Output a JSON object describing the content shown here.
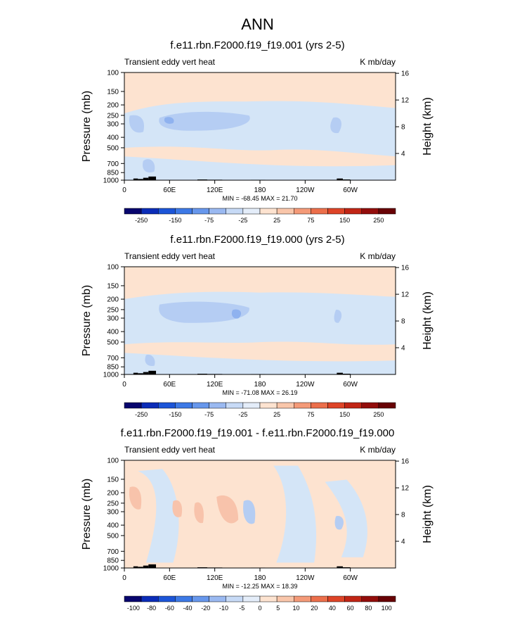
{
  "figure": {
    "title": "ANN",
    "common": {
      "left_label": "Transient eddy vert heat",
      "right_label": "K mb/day",
      "ylabel": "Pressure (mb)",
      "ylabel_right": "Height (km)",
      "pressure_ticks": [
        "100",
        "150",
        "200",
        "250",
        "300",
        "400",
        "500",
        "700",
        "850",
        "1000"
      ],
      "height_ticks": [
        "16",
        "12",
        "8",
        "4"
      ],
      "lon_ticks": [
        "0",
        "60E",
        "120E",
        "180",
        "120W",
        "60W"
      ]
    },
    "colors": {
      "bg_positive": "#fde3d0",
      "bg_negative": "#d4e5f7",
      "cool_level_1": "#b5cdf3",
      "cool_level_2": "#8fb2ef",
      "warm_level_1": "#f8c3ab",
      "terrain": "#000000"
    },
    "panels": [
      {
        "title": "f.e11.rbn.F2000.f19_f19.001 (yrs 2-5)",
        "minmax": "MIN = -68.45  MAX = 21.70",
        "colorbar_colors": [
          "#08066e",
          "#0b2cb8",
          "#1c55d8",
          "#3d79e6",
          "#6797ec",
          "#9ab9f1",
          "#c7daf6",
          "#e4edf9",
          "#fde3d0",
          "#f9c6aa",
          "#f49a78",
          "#ec6f4b",
          "#de4427",
          "#c12515",
          "#930d0b",
          "#680205"
        ],
        "colorbar_labels": [
          "-250",
          "-150",
          "-75",
          "-25",
          "25",
          "75",
          "150",
          "250"
        ]
      },
      {
        "title": "f.e11.rbn.F2000.f19_f19.000 (yrs 2-5)",
        "minmax": "MIN = -71.08  MAX = 26.19",
        "colorbar_colors": [
          "#08066e",
          "#0b2cb8",
          "#1c55d8",
          "#3d79e6",
          "#6797ec",
          "#9ab9f1",
          "#c7daf6",
          "#e4edf9",
          "#fde3d0",
          "#f9c6aa",
          "#f49a78",
          "#ec6f4b",
          "#de4427",
          "#c12515",
          "#930d0b",
          "#680205"
        ],
        "colorbar_labels": [
          "-250",
          "-150",
          "-75",
          "-25",
          "25",
          "75",
          "150",
          "250"
        ]
      },
      {
        "title": "f.e11.rbn.F2000.f19_f19.001 - f.e11.rbn.F2000.f19_f19.000",
        "minmax": "MIN = -12.25  MAX = 18.39",
        "colorbar_colors": [
          "#08066e",
          "#0b2cb8",
          "#1c55d8",
          "#3d79e6",
          "#6797ec",
          "#9ab9f1",
          "#c7daf6",
          "#e4edf9",
          "#fde3d0",
          "#f9c6aa",
          "#f49a78",
          "#ec6f4b",
          "#de4427",
          "#c12515",
          "#930d0b",
          "#680205"
        ],
        "colorbar_labels": [
          "-100",
          "-80",
          "-60",
          "-40",
          "-20",
          "-10",
          "-5",
          "0",
          "5",
          "10",
          "20",
          "40",
          "60",
          "80",
          "100"
        ]
      }
    ]
  },
  "chart_data": [
    {
      "type": "heatmap",
      "title": "f.e11.rbn.F2000.f19_f19.001 (yrs 2-5)",
      "xlabel": "",
      "ylabel": "Pressure (mb)",
      "xlim": [
        0,
        360
      ],
      "ylim": [
        1000,
        100
      ],
      "y_scale": "log",
      "min": -68.45,
      "max": 21.7,
      "levels": [
        -250,
        -200,
        -150,
        -100,
        -75,
        -50,
        -25,
        -10,
        10,
        25,
        50,
        75,
        100,
        150,
        200,
        250
      ],
      "grid": false
    },
    {
      "type": "heatmap",
      "title": "f.e11.rbn.F2000.f19_f19.000 (yrs 2-5)",
      "xlabel": "",
      "ylabel": "Pressure (mb)",
      "xlim": [
        0,
        360
      ],
      "ylim": [
        1000,
        100
      ],
      "y_scale": "log",
      "min": -71.08,
      "max": 26.19,
      "levels": [
        -250,
        -200,
        -150,
        -100,
        -75,
        -50,
        -25,
        -10,
        10,
        25,
        50,
        75,
        100,
        150,
        200,
        250
      ],
      "grid": false
    },
    {
      "type": "heatmap",
      "title": "f.e11.rbn.F2000.f19_f19.001 - f.e11.rbn.F2000.f19_f19.000",
      "xlabel": "",
      "ylabel": "Pressure (mb)",
      "xlim": [
        0,
        360
      ],
      "ylim": [
        1000,
        100
      ],
      "y_scale": "log",
      "min": -12.25,
      "max": 18.39,
      "levels": [
        -100,
        -80,
        -60,
        -40,
        -20,
        -10,
        -5,
        0,
        5,
        10,
        20,
        40,
        60,
        80,
        100
      ],
      "grid": false
    }
  ]
}
